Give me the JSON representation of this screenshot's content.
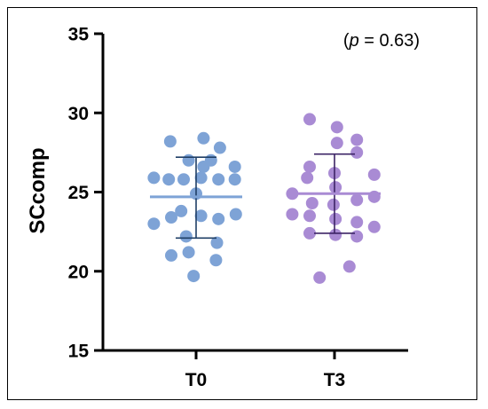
{
  "chart_data": {
    "type": "scatter",
    "title": "",
    "xlabel": "",
    "ylabel": "SCcomp",
    "ylim": [
      15,
      35
    ],
    "yticks": [
      15,
      20,
      25,
      30,
      35
    ],
    "categories": [
      "T0",
      "T3"
    ],
    "grid": false,
    "annotation": {
      "prefix": "(",
      "var": "p",
      "suffix": " = 0.63)"
    },
    "series": [
      {
        "category": "T0",
        "color": "#7ea3d6",
        "line_color": "#1f3f66",
        "summary_color": "#7ea3d6",
        "mean": 24.7,
        "sd_low": 22.1,
        "sd_high": 27.2,
        "points": [
          {
            "y": 28.2,
            "dx": -0.52
          },
          {
            "y": 28.4,
            "dx": 0.15
          },
          {
            "y": 27.8,
            "dx": 0.48
          },
          {
            "y": 27.0,
            "dx": -0.15
          },
          {
            "y": 27.0,
            "dx": 0.3
          },
          {
            "y": 26.6,
            "dx": 0.15
          },
          {
            "y": 26.6,
            "dx": 0.78
          },
          {
            "y": 25.9,
            "dx": -0.85
          },
          {
            "y": 25.8,
            "dx": -0.55
          },
          {
            "y": 25.8,
            "dx": -0.25
          },
          {
            "y": 25.9,
            "dx": 0.1
          },
          {
            "y": 25.8,
            "dx": 0.45
          },
          {
            "y": 25.8,
            "dx": 0.78
          },
          {
            "y": 24.9,
            "dx": 0.0
          },
          {
            "y": 23.8,
            "dx": -0.3
          },
          {
            "y": 23.6,
            "dx": 0.8
          },
          {
            "y": 23.4,
            "dx": -0.5
          },
          {
            "y": 23.5,
            "dx": 0.1
          },
          {
            "y": 23.3,
            "dx": 0.45
          },
          {
            "y": 23.0,
            "dx": -0.85
          },
          {
            "y": 22.2,
            "dx": -0.2
          },
          {
            "y": 21.8,
            "dx": 0.42
          },
          {
            "y": 21.2,
            "dx": -0.15
          },
          {
            "y": 21.0,
            "dx": -0.5
          },
          {
            "y": 20.7,
            "dx": 0.4
          },
          {
            "y": 19.7,
            "dx": -0.05
          }
        ]
      },
      {
        "category": "T3",
        "color": "#a98bd4",
        "line_color": "#3d2466",
        "summary_color": "#a98bd4",
        "mean": 24.9,
        "sd_low": 22.4,
        "sd_high": 27.4,
        "points": [
          {
            "y": 29.6,
            "dx": -0.5
          },
          {
            "y": 29.1,
            "dx": 0.05
          },
          {
            "y": 28.3,
            "dx": 0.45
          },
          {
            "y": 28.1,
            "dx": 0.05
          },
          {
            "y": 27.5,
            "dx": 0.45
          },
          {
            "y": 26.6,
            "dx": -0.5
          },
          {
            "y": 26.2,
            "dx": 0.0
          },
          {
            "y": 26.1,
            "dx": 0.8
          },
          {
            "y": 25.9,
            "dx": -0.55
          },
          {
            "y": 25.3,
            "dx": 0.02
          },
          {
            "y": 24.9,
            "dx": -0.85
          },
          {
            "y": 24.7,
            "dx": 0.8
          },
          {
            "y": 24.5,
            "dx": 0.45
          },
          {
            "y": 24.3,
            "dx": -0.45
          },
          {
            "y": 24.2,
            "dx": -0.02
          },
          {
            "y": 23.6,
            "dx": -0.85
          },
          {
            "y": 23.5,
            "dx": -0.5
          },
          {
            "y": 23.3,
            "dx": 0.02
          },
          {
            "y": 23.1,
            "dx": 0.45
          },
          {
            "y": 22.8,
            "dx": 0.8
          },
          {
            "y": 22.4,
            "dx": -0.5
          },
          {
            "y": 22.3,
            "dx": 0.02
          },
          {
            "y": 22.2,
            "dx": 0.45
          },
          {
            "y": 20.3,
            "dx": 0.3
          },
          {
            "y": 19.6,
            "dx": -0.3
          }
        ]
      }
    ]
  }
}
